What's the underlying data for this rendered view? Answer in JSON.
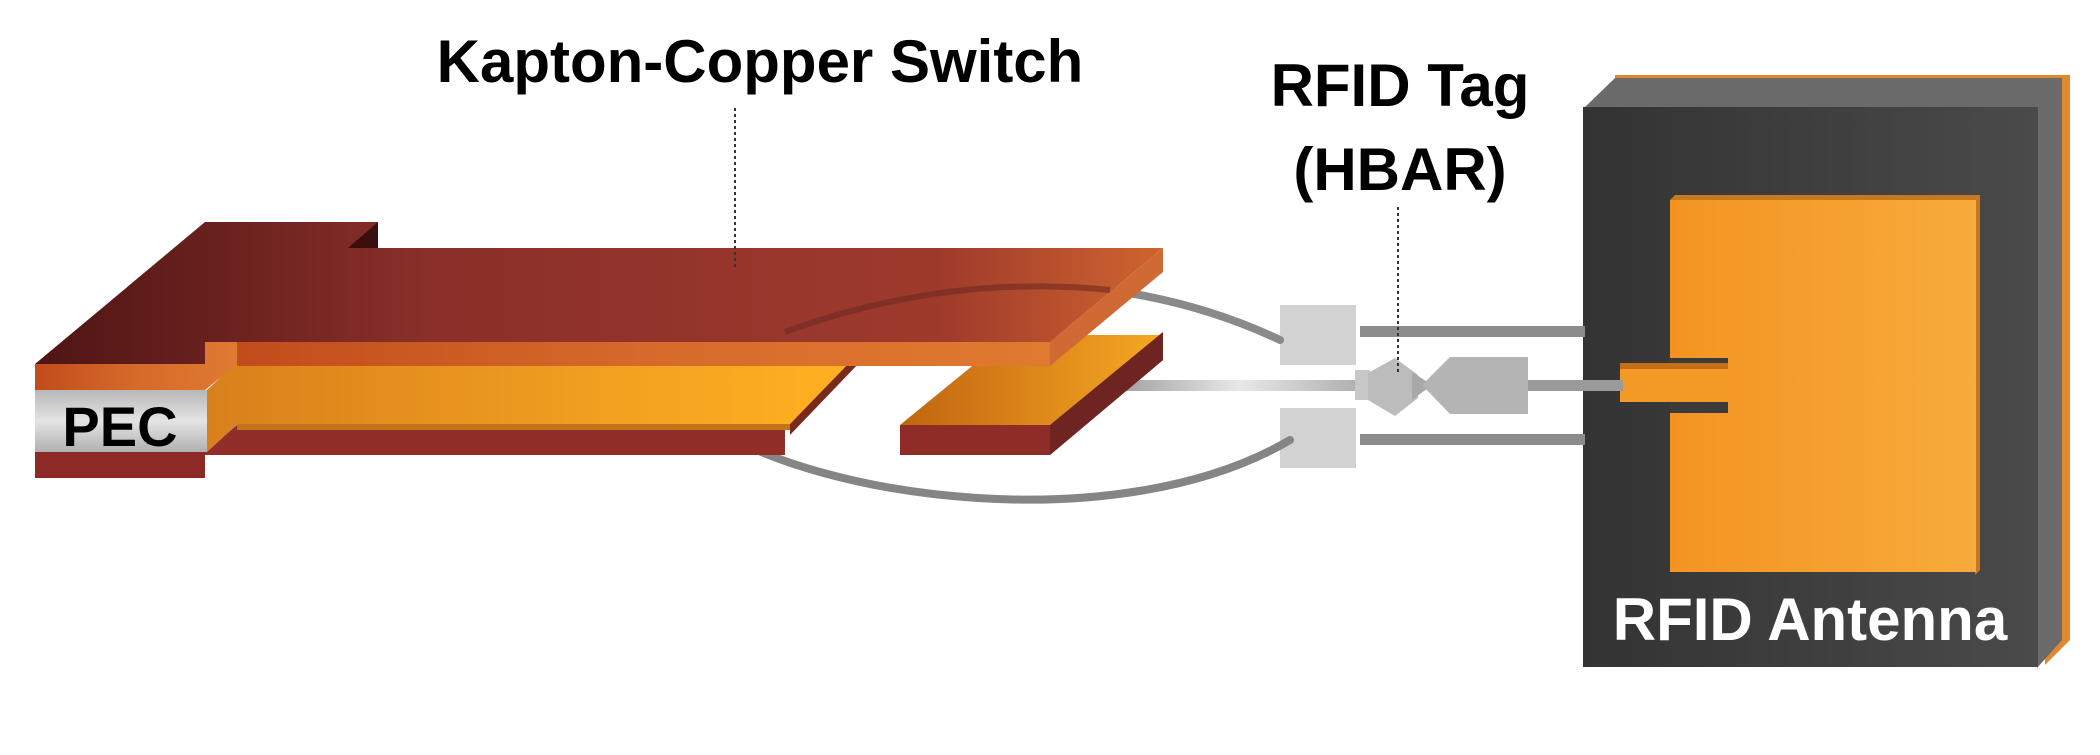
{
  "labels": {
    "switch": "Kapton-Copper Switch",
    "tag_line1": "RFID Tag",
    "tag_line2": "(HBAR)",
    "pec": "PEC",
    "antenna": "RFID Antenna"
  },
  "colors": {
    "copper_dark": "#5a1a18",
    "copper": "#9a3a30",
    "copper_light": "#d06030",
    "kapton_orange": "#f0a020",
    "kapton_dark": "#c06818",
    "pec_gray": "#c8c8c8",
    "wire_gray": "#808080",
    "pad_gray": "#d0d0d0",
    "antenna_board": "#3a3a3a",
    "antenna_edge": "#e08a30",
    "antenna_patch": "#f7a030",
    "text": "#000000",
    "text_on_dark": "#ffffff"
  }
}
